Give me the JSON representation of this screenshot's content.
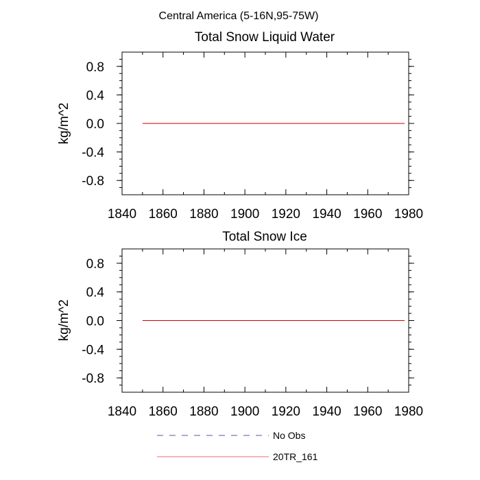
{
  "figure": {
    "suptitle": "Central America (5-16N,95-75W)"
  },
  "chart_data": [
    {
      "type": "line",
      "title": "Total Snow Liquid Water",
      "xlabel": "",
      "ylabel": "kg/m^2",
      "xlim": [
        1840,
        1980
      ],
      "ylim": [
        -1.0,
        1.0
      ],
      "x_ticks": [
        "1840",
        "1860",
        "1880",
        "1900",
        "1920",
        "1940",
        "1960",
        "1980"
      ],
      "y_ticks": [
        "0.8",
        "0.4",
        "0.0",
        "-0.4",
        "-0.8"
      ],
      "series": [
        {
          "name": "20TR_161",
          "color": "#cc0000",
          "x": [
            1850,
            1978
          ],
          "y": [
            0.0,
            0.0
          ]
        }
      ]
    },
    {
      "type": "line",
      "title": "Total Snow Ice",
      "xlabel": "",
      "ylabel": "kg/m^2",
      "xlim": [
        1840,
        1980
      ],
      "ylim": [
        -1.0,
        1.0
      ],
      "x_ticks": [
        "1840",
        "1860",
        "1880",
        "1900",
        "1920",
        "1940",
        "1960",
        "1980"
      ],
      "y_ticks": [
        "0.8",
        "0.4",
        "0.0",
        "-0.4",
        "-0.8"
      ],
      "series": [
        {
          "name": "20TR_161",
          "color": "#cc0000",
          "x": [
            1850,
            1978
          ],
          "y": [
            0.0,
            0.0
          ]
        }
      ]
    }
  ],
  "legend": {
    "items": [
      {
        "label": "No Obs",
        "color": "#5555aa",
        "style": "dashed"
      },
      {
        "label": "20TR_161",
        "color": "#ee6677",
        "style": "solid"
      }
    ]
  }
}
